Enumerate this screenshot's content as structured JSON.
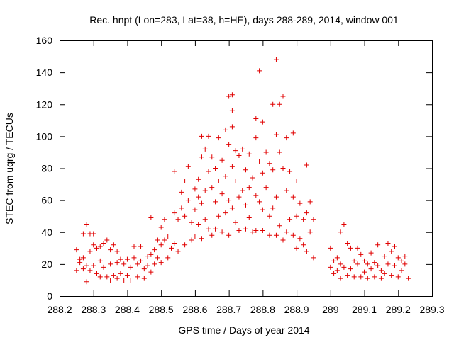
{
  "chart_data": {
    "type": "scatter",
    "title": "Rec. hnpt (Lon=283, Lat=38, h=HE), days 288-289, 2014, window 001",
    "xlabel": "GPS time / Days of year 2014",
    "ylabel": "STEC from uqrg / TECUs",
    "xlim": [
      288.2,
      289.3
    ],
    "ylim": [
      0,
      160
    ],
    "x_ticks": [
      288.2,
      288.3,
      288.4,
      288.5,
      288.6,
      288.7,
      288.8,
      288.9,
      289,
      289.1,
      289.2,
      289.3
    ],
    "x_tick_labels": [
      "288.2",
      "288.3",
      "288.4",
      "288.5",
      "288.6",
      "288.7",
      "288.8",
      "288.9",
      "289",
      "289.1",
      "289.2",
      "289.3"
    ],
    "y_ticks": [
      0,
      20,
      40,
      60,
      80,
      100,
      120,
      140,
      160
    ],
    "y_tick_labels": [
      "0",
      "20",
      "40",
      "60",
      "80",
      "100",
      "120",
      "140",
      "160"
    ],
    "grid": false,
    "marker": "+",
    "colors": {
      "series": "#e00000",
      "axes": "#000000",
      "background": "#ffffff"
    },
    "series": [
      {
        "name": "STEC",
        "points": [
          [
            288.25,
            29
          ],
          [
            288.25,
            16
          ],
          [
            288.26,
            23
          ],
          [
            288.26,
            21
          ],
          [
            288.27,
            39
          ],
          [
            288.27,
            24
          ],
          [
            288.27,
            17
          ],
          [
            288.28,
            45
          ],
          [
            288.28,
            9
          ],
          [
            288.28,
            19
          ],
          [
            288.29,
            39
          ],
          [
            288.29,
            28
          ],
          [
            288.29,
            16
          ],
          [
            288.3,
            39
          ],
          [
            288.3,
            32
          ],
          [
            288.3,
            19
          ],
          [
            288.31,
            30
          ],
          [
            288.31,
            14
          ],
          [
            288.32,
            31
          ],
          [
            288.32,
            22
          ],
          [
            288.32,
            12
          ],
          [
            288.33,
            33
          ],
          [
            288.33,
            18
          ],
          [
            288.34,
            35
          ],
          [
            288.34,
            12
          ],
          [
            288.35,
            29
          ],
          [
            288.35,
            20
          ],
          [
            288.35,
            10
          ],
          [
            288.36,
            32
          ],
          [
            288.36,
            13
          ],
          [
            288.37,
            28
          ],
          [
            288.37,
            21
          ],
          [
            288.37,
            11
          ],
          [
            288.38,
            23
          ],
          [
            288.38,
            14
          ],
          [
            288.39,
            20
          ],
          [
            288.39,
            10
          ],
          [
            288.4,
            23
          ],
          [
            288.4,
            13
          ],
          [
            288.41,
            18
          ],
          [
            288.41,
            10
          ],
          [
            288.42,
            31
          ],
          [
            288.42,
            24
          ],
          [
            288.43,
            20
          ],
          [
            288.43,
            12
          ],
          [
            288.44,
            31
          ],
          [
            288.44,
            22
          ],
          [
            288.45,
            17
          ],
          [
            288.45,
            11
          ],
          [
            288.46,
            25
          ],
          [
            288.46,
            19
          ],
          [
            288.47,
            49
          ],
          [
            288.47,
            26
          ],
          [
            288.47,
            15
          ],
          [
            288.48,
            29
          ],
          [
            288.48,
            20
          ],
          [
            288.49,
            35
          ],
          [
            288.49,
            24
          ],
          [
            288.5,
            43
          ],
          [
            288.5,
            32
          ],
          [
            288.5,
            21
          ],
          [
            288.51,
            48
          ],
          [
            288.51,
            35
          ],
          [
            288.52,
            37
          ],
          [
            288.52,
            24
          ],
          [
            288.53,
            30
          ],
          [
            288.54,
            78
          ],
          [
            288.54,
            52
          ],
          [
            288.54,
            33
          ],
          [
            288.55,
            48
          ],
          [
            288.55,
            28
          ],
          [
            288.56,
            65
          ],
          [
            288.56,
            55
          ],
          [
            288.57,
            72
          ],
          [
            288.57,
            50
          ],
          [
            288.57,
            32
          ],
          [
            288.58,
            81
          ],
          [
            288.58,
            60
          ],
          [
            288.59,
            46
          ],
          [
            288.59,
            35
          ],
          [
            288.6,
            67
          ],
          [
            288.6,
            54
          ],
          [
            288.6,
            37
          ],
          [
            288.61,
            73
          ],
          [
            288.61,
            62
          ],
          [
            288.61,
            45
          ],
          [
            288.62,
            100
          ],
          [
            288.62,
            87
          ],
          [
            288.62,
            58
          ],
          [
            288.62,
            36
          ],
          [
            288.63,
            92
          ],
          [
            288.63,
            66
          ],
          [
            288.63,
            48
          ],
          [
            288.64,
            100
          ],
          [
            288.64,
            78
          ],
          [
            288.64,
            42
          ],
          [
            288.65,
            87
          ],
          [
            288.65,
            68
          ],
          [
            288.65,
            38
          ],
          [
            288.66,
            80
          ],
          [
            288.66,
            59
          ],
          [
            288.66,
            42
          ],
          [
            288.67,
            99
          ],
          [
            288.67,
            72
          ],
          [
            288.67,
            50
          ],
          [
            288.68,
            85
          ],
          [
            288.68,
            64
          ],
          [
            288.68,
            40
          ],
          [
            288.69,
            104
          ],
          [
            288.69,
            75
          ],
          [
            288.69,
            52
          ],
          [
            288.7,
            125
          ],
          [
            288.7,
            95
          ],
          [
            288.7,
            60
          ],
          [
            288.7,
            38
          ],
          [
            288.71,
            126
          ],
          [
            288.71,
            116
          ],
          [
            288.71,
            106
          ],
          [
            288.71,
            81
          ],
          [
            288.71,
            55
          ],
          [
            288.72,
            91
          ],
          [
            288.72,
            72
          ],
          [
            288.72,
            46
          ],
          [
            288.73,
            88
          ],
          [
            288.73,
            62
          ],
          [
            288.73,
            41
          ],
          [
            288.74,
            92
          ],
          [
            288.74,
            66
          ],
          [
            288.75,
            79
          ],
          [
            288.75,
            57
          ],
          [
            288.75,
            42
          ],
          [
            288.76,
            89
          ],
          [
            288.76,
            68
          ],
          [
            288.76,
            49
          ],
          [
            288.77,
            74
          ],
          [
            288.77,
            40
          ],
          [
            288.78,
            111
          ],
          [
            288.78,
            99
          ],
          [
            288.78,
            63
          ],
          [
            288.78,
            41
          ],
          [
            288.79,
            141
          ],
          [
            288.79,
            84
          ],
          [
            288.79,
            59
          ],
          [
            288.8,
            109
          ],
          [
            288.8,
            77
          ],
          [
            288.8,
            54
          ],
          [
            288.8,
            41
          ],
          [
            288.81,
            90
          ],
          [
            288.81,
            68
          ],
          [
            288.82,
            83
          ],
          [
            288.82,
            50
          ],
          [
            288.82,
            38
          ],
          [
            288.83,
            120
          ],
          [
            288.83,
            79
          ],
          [
            288.83,
            55
          ],
          [
            288.84,
            148
          ],
          [
            288.84,
            101
          ],
          [
            288.84,
            62
          ],
          [
            288.84,
            38
          ],
          [
            288.85,
            120
          ],
          [
            288.85,
            90
          ],
          [
            288.85,
            44
          ],
          [
            288.86,
            125
          ],
          [
            288.86,
            80
          ],
          [
            288.86,
            35
          ],
          [
            288.87,
            99
          ],
          [
            288.87,
            66
          ],
          [
            288.87,
            40
          ],
          [
            288.88,
            78
          ],
          [
            288.88,
            48
          ],
          [
            288.89,
            102
          ],
          [
            288.89,
            62
          ],
          [
            288.89,
            38
          ],
          [
            288.9,
            72
          ],
          [
            288.9,
            50
          ],
          [
            288.9,
            30
          ],
          [
            288.91,
            58
          ],
          [
            288.91,
            36
          ],
          [
            288.92,
            48
          ],
          [
            288.92,
            32
          ],
          [
            288.93,
            82
          ],
          [
            288.93,
            52
          ],
          [
            288.93,
            28
          ],
          [
            288.94,
            59
          ],
          [
            288.94,
            40
          ],
          [
            288.95,
            48
          ],
          [
            288.95,
            24
          ],
          [
            289.0,
            30
          ],
          [
            289.0,
            18
          ],
          [
            289.01,
            22
          ],
          [
            289.01,
            14
          ],
          [
            289.02,
            24
          ],
          [
            289.02,
            16
          ],
          [
            289.03,
            40
          ],
          [
            289.03,
            20
          ],
          [
            289.03,
            11
          ],
          [
            289.04,
            45
          ],
          [
            289.04,
            18
          ],
          [
            289.05,
            33
          ],
          [
            289.05,
            13
          ],
          [
            289.06,
            30
          ],
          [
            289.06,
            17
          ],
          [
            289.07,
            22
          ],
          [
            289.07,
            12
          ],
          [
            289.08,
            30
          ],
          [
            289.08,
            20
          ],
          [
            289.09,
            26
          ],
          [
            289.09,
            12
          ],
          [
            289.1,
            22
          ],
          [
            289.1,
            15
          ],
          [
            289.11,
            20
          ],
          [
            289.11,
            11
          ],
          [
            289.12,
            27
          ],
          [
            289.12,
            17
          ],
          [
            289.13,
            21
          ],
          [
            289.13,
            12
          ],
          [
            289.14,
            32
          ],
          [
            289.14,
            19
          ],
          [
            289.15,
            16
          ],
          [
            289.15,
            11
          ],
          [
            289.16,
            25
          ],
          [
            289.16,
            14
          ],
          [
            289.17,
            33
          ],
          [
            289.17,
            20
          ],
          [
            289.18,
            28
          ],
          [
            289.18,
            13
          ],
          [
            289.19,
            31
          ],
          [
            289.19,
            19
          ],
          [
            289.2,
            24
          ],
          [
            289.2,
            12
          ],
          [
            289.21,
            22
          ],
          [
            289.21,
            16
          ],
          [
            289.22,
            25
          ],
          [
            289.22,
            20
          ],
          [
            289.23,
            11
          ]
        ]
      }
    ]
  }
}
